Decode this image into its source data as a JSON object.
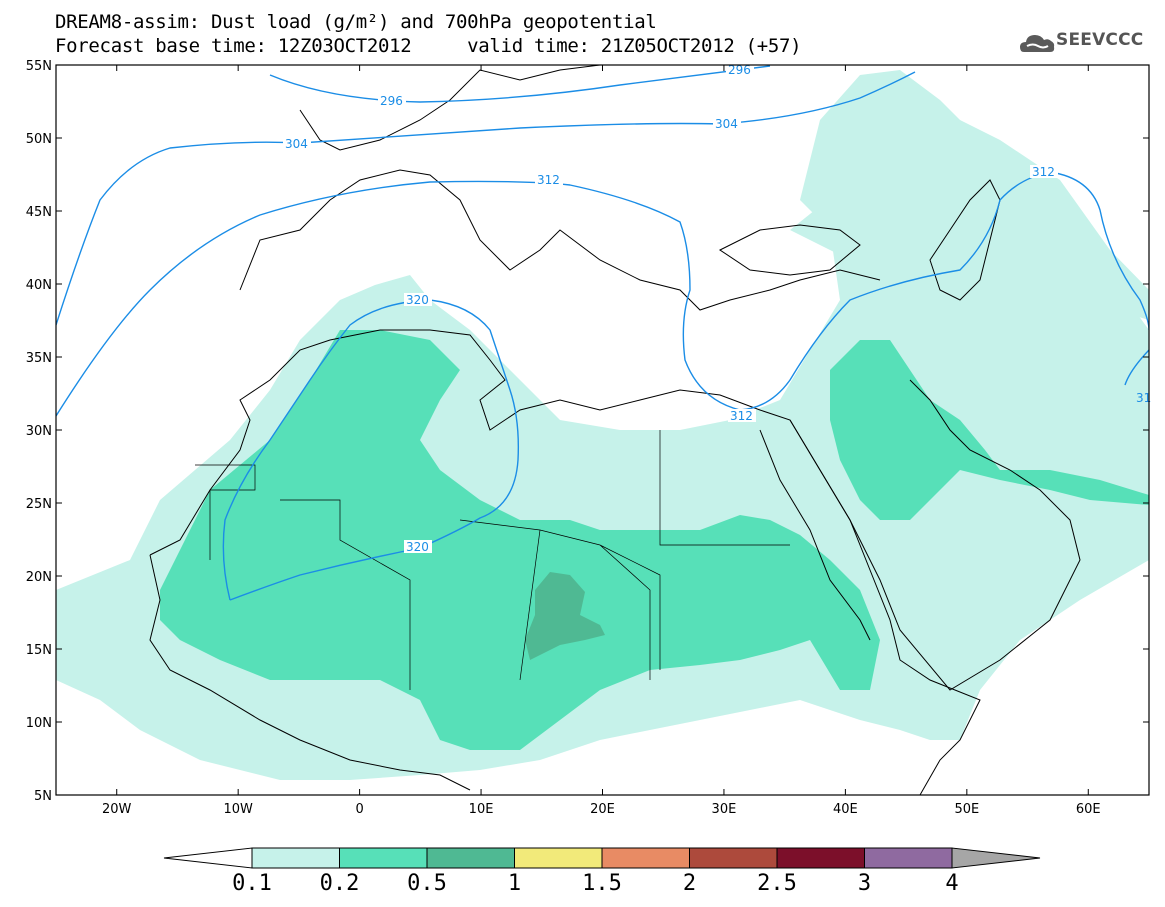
{
  "header": {
    "line1": "DREAM8-assim: Dust load (g/m²) and 700hPa geopotential",
    "line2": "Forecast base time: 12Z03OCT2012     valid time: 21Z05OCT2012 (+57)",
    "logo_text": "SEEVCCC"
  },
  "map": {
    "lon_range": [
      -25,
      65
    ],
    "lat_range": [
      5,
      55
    ],
    "lat_labels": [
      "55N",
      "50N",
      "45N",
      "40N",
      "35N",
      "30N",
      "25N",
      "20N",
      "15N",
      "10N",
      "5N"
    ],
    "lon_labels": [
      "20W",
      "10W",
      "0",
      "10E",
      "20E",
      "30E",
      "40E",
      "50E",
      "60E"
    ],
    "contour_labels": [
      "296",
      "296",
      "304",
      "304",
      "312",
      "312",
      "312",
      "320",
      "320",
      "31"
    ]
  },
  "colorbar": {
    "labels": [
      "0.1",
      "0.2",
      "0.5",
      "1",
      "1.5",
      "2",
      "2.5",
      "3",
      "4"
    ],
    "colors": [
      "#c6f2ea",
      "#57e0b8",
      "#4fb993",
      "#f2ea7a",
      "#e88b64",
      "#ad4a3c",
      "#7c0f2a",
      "#8f6aa0"
    ],
    "under_color": "#ffffff",
    "over_color": "#a6a6a6"
  },
  "colors": {
    "contour": "#1b8de6",
    "land_outline": "#000000"
  }
}
